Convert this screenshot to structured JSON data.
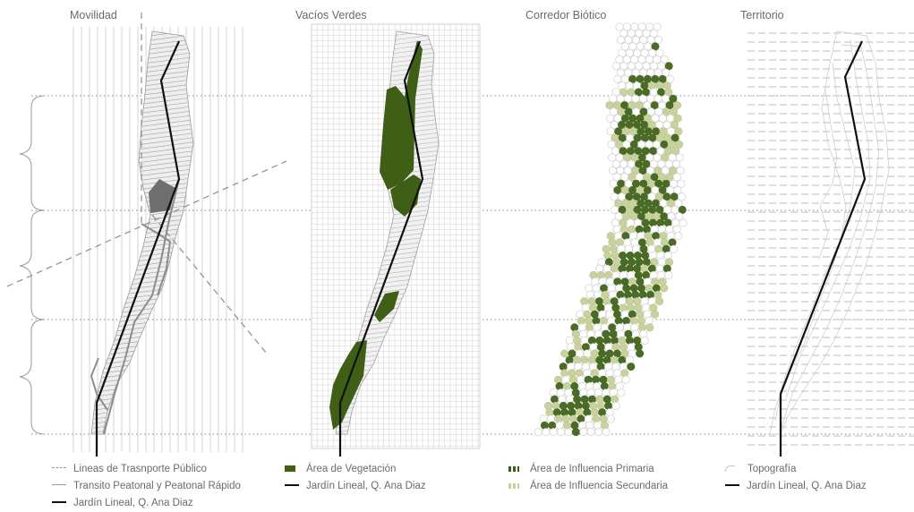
{
  "panels": [
    {
      "title": "Movilidad"
    },
    {
      "title": "Vacíos Verdes"
    },
    {
      "title": "Corredor Biótico"
    },
    {
      "title": "Territorio"
    }
  ],
  "legend": {
    "movilidad": [
      {
        "label": "Lineas de Trasnporte Público",
        "symbol": "dashed-gray-line"
      },
      {
        "label": "Transito Peatonal y Peatonal Rápido",
        "symbol": "gray-line"
      },
      {
        "label": "Jardín Lineal, Q. Ana Diaz",
        "symbol": "black-line"
      }
    ],
    "vacios": [
      {
        "label": "Área de Vegetación",
        "symbol": "green-patch"
      },
      {
        "label": "Jardín Lineal, Q. Ana Diaz",
        "symbol": "black-line"
      }
    ],
    "corredor": [
      {
        "label": "Área de Influencia Primaria",
        "symbol": "dark-green-dots"
      },
      {
        "label": "Área de Influencia Secundaria",
        "symbol": "light-green-dots"
      }
    ],
    "territorio": [
      {
        "label": "Topografía",
        "symbol": "contour-line"
      },
      {
        "label": "Jardín Lineal, Q. Ana Diaz",
        "symbol": "black-line"
      }
    ]
  },
  "colors": {
    "vegetation": "#3e5f15",
    "primary": "#4a6b26",
    "secondary": "#c9d29e",
    "line": "#111111",
    "urban": "#b9b9b9"
  }
}
